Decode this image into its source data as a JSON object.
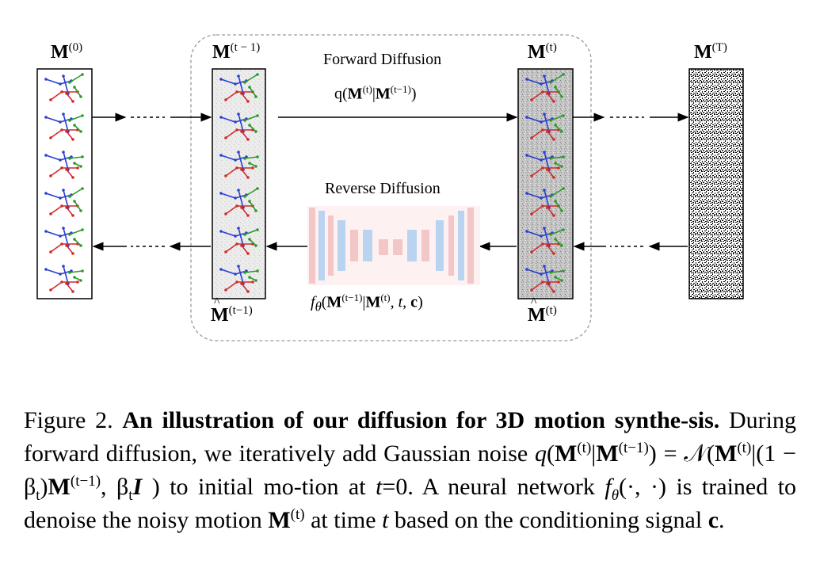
{
  "figure": {
    "labels": {
      "m0": "M",
      "m0_sup": "(0)",
      "mt1": "M",
      "mt1_sup": "(t − 1)",
      "mt": "M",
      "mt_sup": "(t)",
      "mT": "M",
      "mT_sup": "(T)",
      "mhat_t1": "M",
      "mhat_t1_sup": "(t−1)",
      "mhat_t": "M",
      "mhat_t_sup": "(t)"
    },
    "forward_title": "Forward Diffusion",
    "forward_formula_pre": "q(",
    "forward_formula_m1": "M",
    "forward_formula_s1": "(t)",
    "forward_formula_bar": "|",
    "forward_formula_m2": "M",
    "forward_formula_s2": "(t−1)",
    "forward_formula_post": ")",
    "reverse_title": "Reverse Diffusion",
    "reverse_formula_f": "f",
    "reverse_formula_theta": "θ",
    "reverse_formula_open": "(",
    "reverse_formula_m1": "M",
    "reverse_formula_s1": "(t−1)",
    "reverse_formula_bar": "|",
    "reverse_formula_m2": "M",
    "reverse_formula_s2": "(t)",
    "reverse_formula_tail": ", t, ",
    "reverse_formula_c": "c",
    "reverse_formula_close": ")",
    "colors": {
      "joint_blue": "#2a3fd0",
      "joint_red": "#d02a2a",
      "joint_green": "#2a9a2a",
      "unet_red": "#f3c6c8",
      "unet_blue": "#b8d4f1"
    }
  },
  "caption": {
    "label": "Figure 2.",
    "bold_text": "An illustration of our diffusion for 3D motion synthe-sis.",
    "t1": "During forward diffusion, we iteratively add Gaussian noise",
    "q": "q",
    "t2": "(",
    "M": "M",
    "sup_t": "(t)",
    "bar": "|",
    "sup_t1": "(t−1)",
    "t3": ") = 𝒩(",
    "t4": "|(1 − β",
    "sub_t": "t",
    "t5": ")",
    "t6": ", β",
    "I": "I",
    "t7": ") to initial mo-tion at",
    "t_var": "t",
    "t8": "=0.  A neural network",
    "f": "f",
    "theta": "θ",
    "t9": "(·, ·) is trained to denoise the noisy motion",
    "t10": "at time",
    "t11": "based on the conditioning signal",
    "c": "c",
    "end": "."
  }
}
